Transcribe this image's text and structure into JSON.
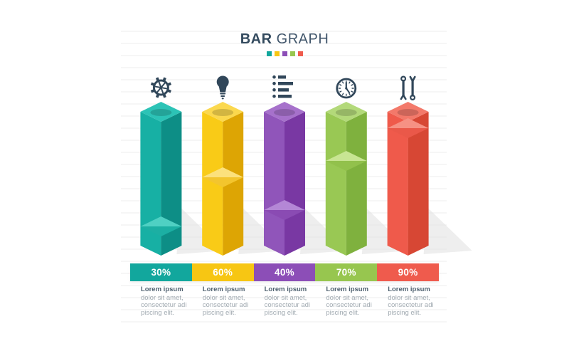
{
  "header": {
    "title_bold": "BAR",
    "title_regular": "GRAPH",
    "accent_colors": [
      "#12A79D",
      "#F7C613",
      "#8C4EB7",
      "#97C64F",
      "#EF5B4D"
    ]
  },
  "chart_data": {
    "type": "bar",
    "title": "BAR GRAPH",
    "unit": "%",
    "ylim": [
      0,
      100
    ],
    "grid": "horizontal ruled lines",
    "legend_position": "none",
    "categories": [
      "settings",
      "idea",
      "list",
      "time",
      "tools"
    ],
    "values": [
      30,
      60,
      40,
      70,
      90
    ],
    "value_labels": [
      "30%",
      "60%",
      "40%",
      "70%",
      "90%"
    ],
    "bars": [
      {
        "icon": "gear-icon",
        "label": "30%",
        "value": 30,
        "colors": {
          "band": "#12A79D",
          "face_light": "#17B0A4",
          "face_dark": "#0D8E86",
          "top": "#2CC3B6",
          "fill_top_light": "#4FD0C3",
          "fill_top_dark": "#1CAFA3"
        }
      },
      {
        "icon": "lightbulb-icon",
        "label": "60%",
        "value": 60,
        "colors": {
          "band": "#F7C613",
          "face_light": "#F9CB17",
          "face_dark": "#DDA504",
          "top": "#FBD84E",
          "fill_top_light": "#FCE17C",
          "fill_top_dark": "#F3C52E"
        }
      },
      {
        "icon": "list-icon",
        "label": "40%",
        "value": 40,
        "colors": {
          "band": "#8C4EB7",
          "face_light": "#9055BA",
          "face_dark": "#7938A3",
          "top": "#A671CB",
          "fill_top_light": "#B487D6",
          "fill_top_dark": "#8A4BB3"
        }
      },
      {
        "icon": "clock-icon",
        "label": "70%",
        "value": 70,
        "colors": {
          "band": "#97C64F",
          "face_light": "#99C854",
          "face_dark": "#7FB13E",
          "top": "#B3D97A",
          "fill_top_light": "#C8E593",
          "fill_top_dark": "#92C14C"
        }
      },
      {
        "icon": "wrench-icon",
        "label": "90%",
        "value": 90,
        "colors": {
          "band": "#EF5B4D",
          "face_light": "#EF5A4B",
          "face_dark": "#D74734",
          "top": "#F3796A",
          "fill_top_light": "#F69184",
          "fill_top_dark": "#EA5849"
        }
      }
    ]
  },
  "descriptions": [
    {
      "heading": "Lorem ipsum",
      "lines": [
        "dolor sit amet,",
        "consectetur adi",
        "piscing elit."
      ]
    },
    {
      "heading": "Lorem ipsum",
      "lines": [
        "dolor sit amet,",
        "consectetur adi",
        "piscing elit."
      ]
    },
    {
      "heading": "Lorem ipsum",
      "lines": [
        "dolor sit amet,",
        "consectetur adi",
        "piscing elit."
      ]
    },
    {
      "heading": "Lorem ipsum",
      "lines": [
        "dolor sit amet,",
        "consectetur adi",
        "piscing elit."
      ]
    },
    {
      "heading": "Lorem ipsum",
      "lines": [
        "dolor sit amet,",
        "consectetur adi",
        "piscing elit."
      ]
    }
  ],
  "palette": {
    "icon": "#31475A",
    "title": "#334A5E",
    "desc_heading": "#4F6170",
    "desc_body": "#A2ABB2",
    "ruled_line": "#EDEDED",
    "shadow": "#DEDEDE",
    "background": "#FFFFFF"
  }
}
